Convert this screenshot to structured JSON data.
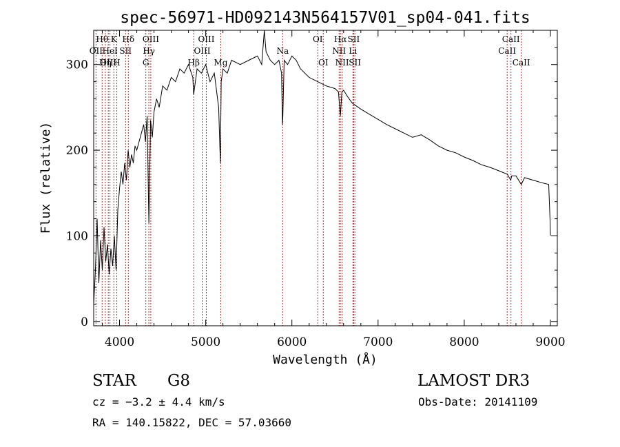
{
  "chart_data": {
    "type": "line",
    "title": "spec-56971-HD092143N564157V01_sp04-041.fits",
    "xlabel": "Wavelength (Å)",
    "ylabel": "Flux (relative)",
    "xlim": [
      3700,
      9080
    ],
    "ylim": [
      -5,
      340
    ],
    "xticks": [
      4000,
      5000,
      6000,
      7000,
      8000,
      9000
    ],
    "yticks": [
      0,
      100,
      200,
      300
    ],
    "series": [
      {
        "name": "spectrum",
        "x": [
          3700,
          3720,
          3740,
          3760,
          3780,
          3800,
          3820,
          3840,
          3860,
          3880,
          3900,
          3920,
          3940,
          3960,
          3980,
          4000,
          4020,
          4040,
          4060,
          4080,
          4100,
          4120,
          4140,
          4160,
          4180,
          4200,
          4240,
          4280,
          4300,
          4320,
          4340,
          4360,
          4380,
          4400,
          4430,
          4460,
          4500,
          4550,
          4600,
          4650,
          4700,
          4750,
          4800,
          4850,
          4860,
          4900,
          4950,
          5000,
          5050,
          5100,
          5150,
          5170,
          5180,
          5200,
          5250,
          5300,
          5400,
          5500,
          5600,
          5650,
          5680,
          5700,
          5750,
          5800,
          5850,
          5880,
          5890,
          5895,
          5910,
          5950,
          6000,
          6050,
          6100,
          6200,
          6300,
          6400,
          6500,
          6540,
          6563,
          6580,
          6600,
          6650,
          6700,
          6800,
          6900,
          7000,
          7100,
          7200,
          7300,
          7400,
          7500,
          7600,
          7700,
          7800,
          7900,
          8000,
          8100,
          8200,
          8300,
          8400,
          8500,
          8540,
          8550,
          8600,
          8662,
          8700,
          8800,
          8900,
          8980,
          8995,
          9000
        ],
        "values": [
          20,
          60,
          120,
          45,
          95,
          60,
          110,
          70,
          90,
          55,
          85,
          65,
          100,
          60,
          130,
          155,
          175,
          160,
          185,
          165,
          200,
          180,
          195,
          185,
          205,
          200,
          215,
          230,
          210,
          240,
          115,
          235,
          215,
          245,
          260,
          250,
          275,
          270,
          285,
          280,
          295,
          290,
          300,
          285,
          265,
          295,
          290,
          300,
          280,
          290,
          250,
          185,
          280,
          295,
          290,
          305,
          300,
          305,
          310,
          300,
          340,
          315,
          305,
          300,
          305,
          290,
          230,
          240,
          305,
          300,
          310,
          305,
          295,
          285,
          280,
          275,
          272,
          268,
          240,
          268,
          270,
          262,
          255,
          248,
          242,
          236,
          230,
          225,
          220,
          215,
          218,
          212,
          205,
          200,
          197,
          192,
          188,
          183,
          180,
          176,
          172,
          165,
          170,
          170,
          160,
          168,
          165,
          162,
          160,
          120,
          100
        ]
      }
    ],
    "lines": [
      {
        "label": "Hθ",
        "wave": 3798,
        "row": 1
      },
      {
        "label": "OII",
        "wave": 3727,
        "row": 2
      },
      {
        "label": "OIII",
        "wave": 3869,
        "row": 3
      },
      {
        "label": "K",
        "wave": 3934,
        "row": 1
      },
      {
        "label": "HeI",
        "wave": 3889,
        "row": 2
      },
      {
        "label": "Hη",
        "wave": 3835,
        "row": 3
      },
      {
        "label": "Hδ",
        "wave": 4102,
        "row": 1
      },
      {
        "label": "SII",
        "wave": 4070,
        "row": 2
      },
      {
        "label": "H",
        "wave": 3968,
        "row": 3
      },
      {
        "label": "OIII",
        "wave": 4363,
        "row": 1
      },
      {
        "label": "Hγ",
        "wave": 4340,
        "row": 2
      },
      {
        "label": "G",
        "wave": 4305,
        "row": 3
      },
      {
        "label": "Hβ",
        "wave": 4861,
        "row": 3
      },
      {
        "label": "OIII",
        "wave": 5007,
        "row": 1
      },
      {
        "label": "OIII",
        "wave": 4959,
        "row": 2
      },
      {
        "label": "Mg",
        "wave": 5175,
        "row": 3
      },
      {
        "label": "Na",
        "wave": 5893,
        "row": 2
      },
      {
        "label": "OI",
        "wave": 6300,
        "row": 1
      },
      {
        "label": "OI",
        "wave": 6364,
        "row": 3
      },
      {
        "label": "Hα",
        "wave": 6563,
        "row": 1
      },
      {
        "label": "NII",
        "wave": 6548,
        "row": 2
      },
      {
        "label": "NII",
        "wave": 6583,
        "row": 3
      },
      {
        "label": "SII",
        "wave": 6717,
        "row": 1
      },
      {
        "label": "Li",
        "wave": 6708,
        "row": 2
      },
      {
        "label": "SII",
        "wave": 6731,
        "row": 3
      },
      {
        "label": "CaII",
        "wave": 8542,
        "row": 1
      },
      {
        "label": "CaII",
        "wave": 8498,
        "row": 2
      },
      {
        "label": "CaII",
        "wave": 8662,
        "row": 3
      }
    ],
    "colors": {
      "spectrum": "#000000",
      "marker": "#b03030",
      "axis": "#000000"
    }
  },
  "info": {
    "object_class": "STAR",
    "subclass": "G8",
    "survey": "LAMOST DR3",
    "redshift": "cz = −3.2 ± 4.4 km/s",
    "obs_date": "Obs-Date: 20141109",
    "coords": "RA = 140.15822, DEC =  57.03660"
  }
}
